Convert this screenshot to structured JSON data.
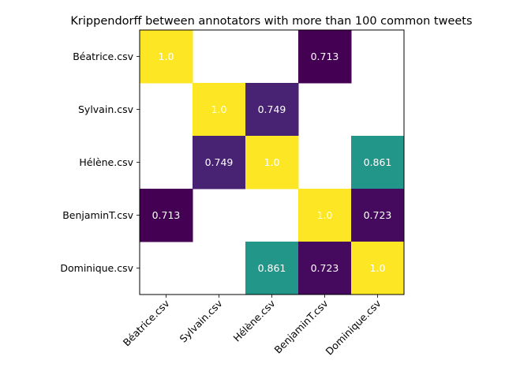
{
  "chart_data": {
    "type": "heatmap",
    "title": "Krippendorff between annotators with more than 100 common tweets",
    "rows": [
      "Béatrice.csv",
      "Sylvain.csv",
      "Hélène.csv",
      "BenjaminT.csv",
      "Dominique.csv"
    ],
    "cols": [
      "Béatrice.csv",
      "Sylvain.csv",
      "Hélène.csv",
      "BenjaminT.csv",
      "Dominique.csv"
    ],
    "values": [
      [
        1.0,
        null,
        null,
        0.713,
        null
      ],
      [
        null,
        1.0,
        0.749,
        null,
        null
      ],
      [
        null,
        0.749,
        1.0,
        null,
        0.861
      ],
      [
        0.713,
        null,
        null,
        1.0,
        0.723
      ],
      [
        null,
        null,
        0.861,
        0.723,
        1.0
      ]
    ],
    "labels": [
      [
        "1.0",
        "",
        "",
        "0.713",
        ""
      ],
      [
        "",
        "1.0",
        "0.749",
        "",
        ""
      ],
      [
        "",
        "0.749",
        "1.0",
        "",
        "0.861"
      ],
      [
        "0.713",
        "",
        "",
        "1.0",
        "0.723"
      ],
      [
        "",
        "",
        "0.861",
        "0.723",
        "1.0"
      ]
    ],
    "colormap": "viridis",
    "colors": {
      "high": "#fde725",
      "mid": "#21918c",
      "low": "#440154"
    },
    "xtick_rotation": 45
  }
}
